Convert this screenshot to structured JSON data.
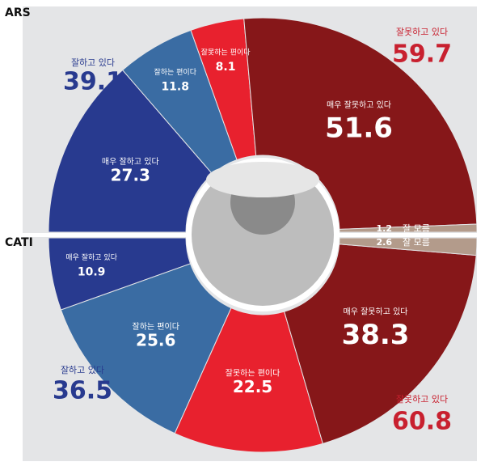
{
  "chart_data": [
    {
      "type": "half-donut",
      "title": "ARS",
      "half": "top",
      "categories": [
        "매우 잘하고 있다",
        "잘하는 편이다",
        "잘못하는 편이다",
        "매우 잘못하고 있다",
        "잘 모름"
      ],
      "values": [
        27.3,
        11.8,
        8.1,
        51.6,
        1.2
      ],
      "colors": [
        "#283a8f",
        "#3a6ca3",
        "#e8212e",
        "#861719",
        "#b39b8b"
      ],
      "summary": [
        {
          "label": "잘하고 있다",
          "value": 39.1,
          "color": "#283a8f"
        },
        {
          "label": "잘못하고 있다",
          "value": 59.7,
          "color": "#c8202f"
        }
      ]
    },
    {
      "type": "half-donut",
      "title": "CATI",
      "half": "bottom",
      "categories": [
        "매우 잘하고 있다",
        "잘하는 편이다",
        "잘못하는 편이다",
        "매우 잘못하고 있다",
        "잘 모름"
      ],
      "values": [
        10.9,
        25.6,
        22.5,
        38.3,
        2.6
      ],
      "colors": [
        "#283a8f",
        "#3a6ca3",
        "#e8212e",
        "#861719",
        "#b39b8b"
      ],
      "summary": [
        {
          "label": "잘하고 있다",
          "value": 36.5,
          "color": "#283a8f"
        },
        {
          "label": "잘못하고 있다",
          "value": 60.8,
          "color": "#c8202f"
        }
      ]
    }
  ]
}
